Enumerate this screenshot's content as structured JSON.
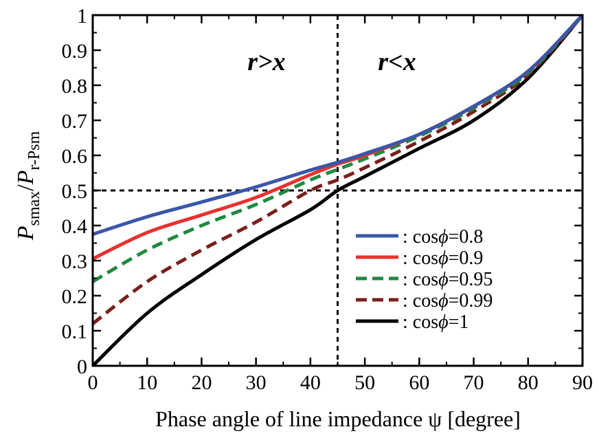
{
  "chart_data": {
    "type": "line",
    "xlabel": "Phase angle of line impedance ψ  [degree]",
    "ylabel": {
      "P1": "P",
      "sub1": "smax",
      "slash": "/",
      "P2": "P",
      "sub2": "r-Psm"
    },
    "xlim": [
      0,
      90
    ],
    "ylim": [
      0,
      1
    ],
    "xticks": [
      0,
      10,
      20,
      30,
      40,
      50,
      60,
      70,
      80,
      90
    ],
    "yticks": [
      0,
      0.1,
      0.2,
      0.3,
      0.4,
      0.5,
      0.6,
      0.7,
      0.8,
      0.9,
      1
    ],
    "ytick_labels": [
      "0",
      "0.1",
      "0.2",
      "0.3",
      "0.4",
      "0.5",
      "0.6",
      "0.7",
      "0.8",
      "0.9",
      "1"
    ],
    "grid": false,
    "legend_position": "bottom-right",
    "reference_lines": {
      "vertical_x": 45,
      "horizontal_y": 0.5
    },
    "annotations": {
      "left": "r>x",
      "right": "r<x"
    },
    "series": [
      {
        "name": ": cosϕ=0.8",
        "legend_prefix": ": cos",
        "legend_phi": "ϕ",
        "legend_value": "=0.8",
        "color": "#3a57a8",
        "dash": "solid",
        "x": [
          0,
          10,
          20,
          30,
          40,
          45,
          50,
          60,
          70,
          80,
          90
        ],
        "y": [
          0.375,
          0.425,
          0.467,
          0.51,
          0.558,
          0.58,
          0.605,
          0.66,
          0.74,
          0.84,
          1.0
        ]
      },
      {
        "name": ": cosϕ=0.9",
        "legend_prefix": ": cos",
        "legend_phi": "ϕ",
        "legend_value": "=0.9",
        "color": "#e8312e",
        "dash": "solid",
        "x": [
          0,
          10,
          20,
          30,
          40,
          45,
          50,
          60,
          70,
          80,
          90
        ],
        "y": [
          0.305,
          0.38,
          0.43,
          0.48,
          0.545,
          0.575,
          0.6,
          0.66,
          0.74,
          0.84,
          1.0
        ]
      },
      {
        "name": ": cosϕ=0.95",
        "legend_prefix": ": cos",
        "legend_phi": "ϕ",
        "legend_value": "=0.95",
        "color": "#1e8a3e",
        "dash": "dashed",
        "x": [
          0,
          10,
          20,
          30,
          40,
          45,
          50,
          60,
          70,
          80,
          90
        ],
        "y": [
          0.24,
          0.33,
          0.4,
          0.46,
          0.53,
          0.56,
          0.59,
          0.655,
          0.735,
          0.835,
          1.0
        ]
      },
      {
        "name": ": cosϕ=0.99",
        "legend_prefix": ": cos",
        "legend_phi": "ϕ",
        "legend_value": "=0.99",
        "color": "#7a1f1a",
        "dash": "dashed",
        "x": [
          0,
          10,
          20,
          30,
          40,
          45,
          50,
          60,
          70,
          80,
          90
        ],
        "y": [
          0.12,
          0.24,
          0.33,
          0.41,
          0.5,
          0.53,
          0.565,
          0.64,
          0.725,
          0.83,
          1.0
        ]
      },
      {
        "name": ": cosϕ=1",
        "legend_prefix": ": cos",
        "legend_phi": "ϕ",
        "legend_value": "=1",
        "color": "#000000",
        "dash": "solid",
        "x": [
          0,
          10,
          20,
          30,
          40,
          45,
          50,
          60,
          70,
          80,
          90
        ],
        "y": [
          0.0,
          0.15,
          0.26,
          0.36,
          0.445,
          0.5,
          0.54,
          0.62,
          0.7,
          0.82,
          1.0
        ]
      }
    ]
  }
}
